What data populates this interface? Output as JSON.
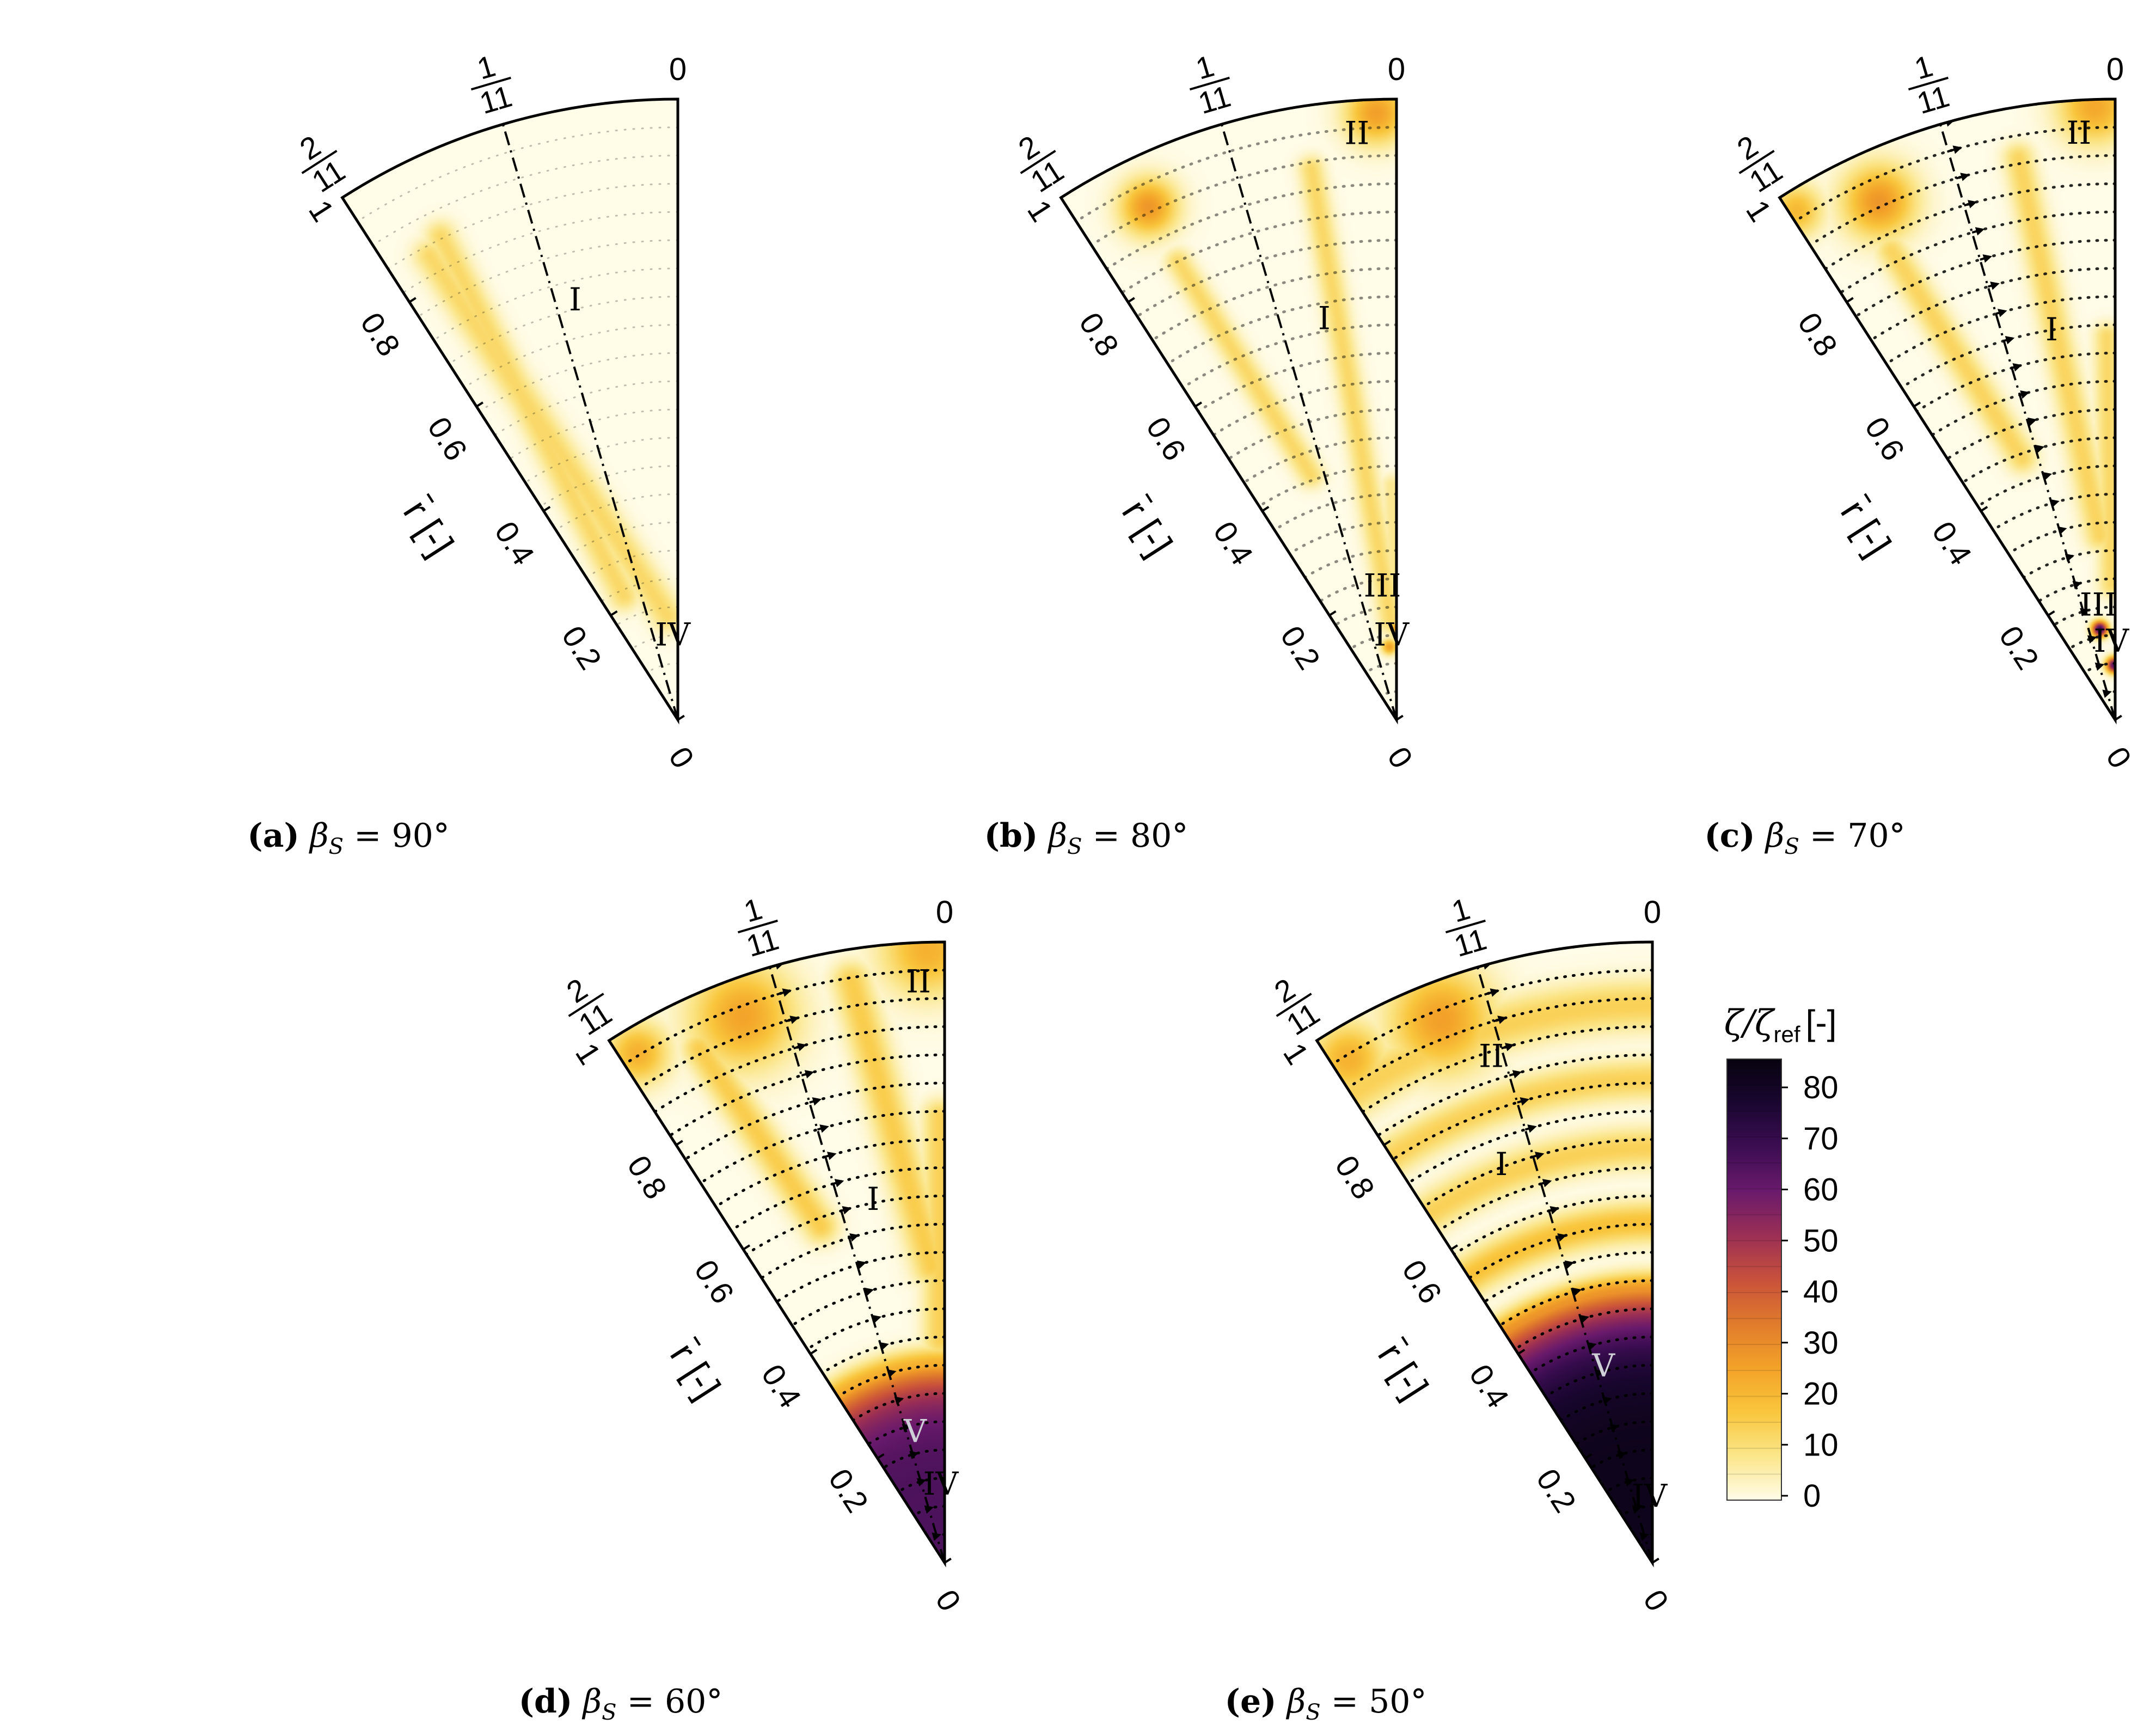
{
  "figure": {
    "x_axis_label": "r̄ [-]",
    "tick_labels": [
      "0",
      "0.2",
      "0.4",
      "0.6",
      "0.8",
      "1"
    ],
    "angle_labels": [
      {
        "num": "",
        "den": "",
        "plain": "0"
      },
      {
        "num": "1",
        "den": "11"
      },
      {
        "num": "2",
        "den": "11"
      }
    ]
  },
  "colors": {
    "colormap": [
      "#fffce8",
      "#fbe68a",
      "#f9c63c",
      "#f3a229",
      "#e07b2c",
      "#c8513b",
      "#9b2f55",
      "#6a1a6c",
      "#3c0d52",
      "#1a0630",
      "#07030f"
    ]
  },
  "colorbar": {
    "title_main": "ζ/ζ",
    "title_sub": "ref",
    "title_unit": "[-]",
    "ticks": [
      "0",
      "10",
      "20",
      "30",
      "40",
      "50",
      "60",
      "70",
      "80"
    ]
  },
  "chart_data": [
    {
      "id": "a",
      "type": "heatmap",
      "caption_label": "(a)",
      "caption_beta": "β",
      "caption_sub": "S",
      "caption_value": "= 90°",
      "theta_range": [
        0,
        0.1818
      ],
      "r_range": [
        0,
        1
      ],
      "labels": [
        {
          "text": "I",
          "r": 0.68,
          "t": 0.43
        },
        {
          "text": "IV",
          "r": 0.12,
          "t": 0.12
        }
      ],
      "streamlines": false,
      "features": [
        {
          "kind": "ray",
          "r0": 0.17,
          "t0": 0.18,
          "r1": 0.85,
          "t1": 0.86,
          "w": 0.038,
          "v": 12
        },
        {
          "kind": "ray",
          "r0": 0.22,
          "t0": 0.72,
          "r1": 0.87,
          "t1": 0.8,
          "w": 0.035,
          "v": 12
        }
      ]
    },
    {
      "id": "b",
      "type": "heatmap",
      "caption_label": "(b)",
      "caption_beta": "β",
      "caption_sub": "S",
      "caption_value": "= 80°",
      "theta_range": [
        0,
        0.1818
      ],
      "r_range": [
        0,
        1
      ],
      "labels": [
        {
          "text": "I",
          "r": 0.64,
          "t": 0.32
        },
        {
          "text": "II",
          "r": 0.93,
          "t": 0.12
        },
        {
          "text": "III",
          "r": 0.2,
          "t": 0.2
        },
        {
          "text": "IV",
          "r": 0.12,
          "t": 0.12
        }
      ],
      "streamlines": true,
      "stream_opacity": 0.45,
      "features": [
        {
          "kind": "ray",
          "r0": 0.16,
          "t0": 0.1,
          "r1": 0.9,
          "t1": 0.27,
          "w": 0.03,
          "v": 12
        },
        {
          "kind": "ray",
          "r0": 0.42,
          "t0": 0.59,
          "r1": 0.82,
          "t1": 0.78,
          "w": 0.03,
          "v": 12
        },
        {
          "kind": "ray",
          "r0": 0.12,
          "t0": 0.01,
          "r1": 0.38,
          "t1": 0.04,
          "w": 0.025,
          "v": 8
        },
        {
          "kind": "blob",
          "r": 0.98,
          "t": 0.06,
          "w": 0.06,
          "v": 26
        },
        {
          "kind": "blob",
          "r": 0.92,
          "t": 0.79,
          "w": 0.055,
          "v": 28
        },
        {
          "kind": "blob",
          "r": 0.12,
          "t": 0.18,
          "w": 0.015,
          "v": 26
        },
        {
          "kind": "blob",
          "r": 0.15,
          "t": 0.02,
          "w": 0.012,
          "v": 26
        }
      ]
    },
    {
      "id": "c",
      "type": "heatmap",
      "caption_label": "(c)",
      "caption_beta": "β",
      "caption_sub": "S",
      "caption_value": "= 70°",
      "theta_range": [
        0,
        0.1818
      ],
      "r_range": [
        0,
        1
      ],
      "labels": [
        {
          "text": "I",
          "r": 0.62,
          "t": 0.29
        },
        {
          "text": "II",
          "r": 0.93,
          "t": 0.11
        },
        {
          "text": "III",
          "r": 0.17,
          "t": 0.28
        },
        {
          "text": "IV",
          "r": 0.11,
          "t": 0.1
        }
      ],
      "streamlines": true,
      "stream_opacity": 0.85,
      "features": [
        {
          "kind": "ray",
          "r0": 0.3,
          "t0": 0.15,
          "r1": 0.92,
          "t1": 0.3,
          "w": 0.035,
          "v": 13
        },
        {
          "kind": "ray",
          "r0": 0.45,
          "t0": 0.6,
          "r1": 0.84,
          "t1": 0.78,
          "w": 0.035,
          "v": 13
        },
        {
          "kind": "ray",
          "r0": 0.22,
          "t0": 0.05,
          "r1": 0.62,
          "t1": 0.04,
          "w": 0.03,
          "v": 12
        },
        {
          "kind": "blob",
          "r": 0.99,
          "t": 0.06,
          "w": 0.07,
          "v": 24
        },
        {
          "kind": "blob",
          "r": 0.92,
          "t": 0.75,
          "w": 0.07,
          "v": 28
        },
        {
          "kind": "blob",
          "r": 0.97,
          "t": 0.98,
          "w": 0.05,
          "v": 20
        },
        {
          "kind": "blob",
          "r": 0.15,
          "t": 0.3,
          "w": 0.015,
          "v": 70
        },
        {
          "kind": "blob",
          "r": 0.09,
          "t": 0.05,
          "w": 0.015,
          "v": 65
        }
      ]
    },
    {
      "id": "d",
      "type": "heatmap",
      "caption_label": "(d)",
      "caption_beta": "β",
      "caption_sub": "S",
      "caption_value": "= 60°",
      "theta_range": [
        0,
        0.1818
      ],
      "r_range": [
        0,
        1
      ],
      "labels": [
        {
          "text": "I",
          "r": 0.58,
          "t": 0.35
        },
        {
          "text": "II",
          "r": 0.92,
          "t": 0.08
        },
        {
          "text": "V",
          "r": 0.2,
          "t": 0.42
        },
        {
          "text": "IV",
          "r": 0.11,
          "t": 0.1
        }
      ],
      "streamlines": true,
      "stream_opacity": 1.0,
      "features": [
        {
          "kind": "core",
          "r": 0.32,
          "v": 65
        },
        {
          "kind": "ray",
          "r0": 0.48,
          "t0": 0.08,
          "r1": 0.95,
          "t1": 0.28,
          "w": 0.045,
          "v": 15
        },
        {
          "kind": "ray",
          "r0": 0.58,
          "t0": 0.62,
          "r1": 0.92,
          "t1": 0.78,
          "w": 0.04,
          "v": 15
        },
        {
          "kind": "ray",
          "r0": 0.36,
          "t0": 0.04,
          "r1": 0.72,
          "t1": 0.02,
          "w": 0.04,
          "v": 14
        },
        {
          "kind": "blob",
          "r": 0.99,
          "t": 0.05,
          "w": 0.09,
          "v": 22
        },
        {
          "kind": "blob",
          "r": 0.94,
          "t": 0.62,
          "w": 0.1,
          "v": 25
        },
        {
          "kind": "blob",
          "r": 0.96,
          "t": 0.95,
          "w": 0.06,
          "v": 22
        }
      ]
    },
    {
      "id": "e",
      "type": "heatmap",
      "caption_label": "(e)",
      "caption_beta": "β",
      "caption_sub": "S",
      "caption_value": "= 50°",
      "theta_range": [
        0,
        0.1818
      ],
      "r_range": [
        0,
        1
      ],
      "labels": [
        {
          "text": "II",
          "r": 0.84,
          "t": 0.55
        },
        {
          "text": "I",
          "r": 0.67,
          "t": 0.65
        },
        {
          "text": "V",
          "r": 0.31,
          "t": 0.45
        },
        {
          "text": "IV",
          "r": 0.09,
          "t": 0.09
        }
      ],
      "streamlines": true,
      "stream_opacity": 1.0,
      "features": [
        {
          "kind": "core",
          "r": 0.44,
          "v": 82
        },
        {
          "kind": "ring",
          "r": 0.55,
          "w": 0.04,
          "v": 18
        },
        {
          "kind": "ring",
          "r": 0.67,
          "w": 0.04,
          "v": 14
        },
        {
          "kind": "ring",
          "r": 0.78,
          "w": 0.04,
          "v": 14
        },
        {
          "kind": "ring",
          "r": 0.9,
          "w": 0.05,
          "v": 14
        },
        {
          "kind": "blob",
          "r": 0.94,
          "t": 0.65,
          "w": 0.1,
          "v": 26
        },
        {
          "kind": "blob",
          "r": 0.95,
          "t": 0.95,
          "w": 0.07,
          "v": 22
        },
        {
          "kind": "blob",
          "r": 0.06,
          "t": 0.05,
          "w": 0.05,
          "v": 35
        }
      ]
    }
  ]
}
